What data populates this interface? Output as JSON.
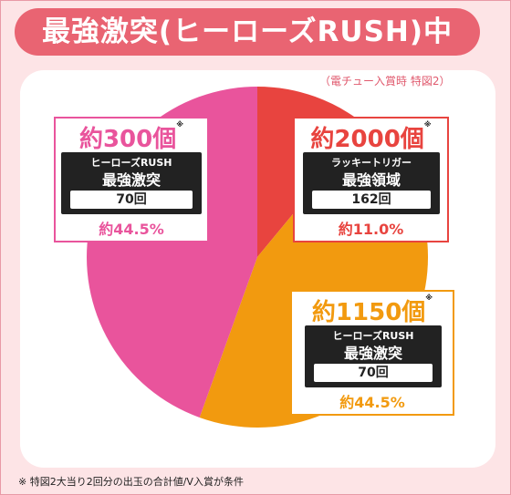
{
  "title": "最強激突(ヒーローズRUSH)中",
  "subnote": "（電チュー入賞時 特図2）",
  "footnote": "※ 特図2大当り2回分の出玉の合計値/V入賞が条件",
  "colors": {
    "pink": "#e9549c",
    "red": "#e8443f",
    "orange": "#f29a0f"
  },
  "chart_data": {
    "type": "pie",
    "title": "最強激突(ヒーローズRUSH)中",
    "slices": [
      {
        "label": "約2000個",
        "value": 11.0,
        "color": "#e8443f",
        "payout": "約2000個",
        "route": "ラッキートリガー",
        "mode": "最強領域",
        "count": "162回",
        "percent": "約11.0%"
      },
      {
        "label": "約1150個",
        "value": 44.5,
        "color": "#f29a0f",
        "payout": "約1150個",
        "route": "ヒーローズRUSH",
        "mode": "最強激突",
        "count": "70回",
        "percent": "約44.5%"
      },
      {
        "label": "約300個",
        "value": 44.5,
        "color": "#e9549c",
        "payout": "約300個",
        "route": "ヒーローズRUSH",
        "mode": "最強激突",
        "count": "70回",
        "percent": "約44.5%"
      }
    ]
  },
  "boxes": {
    "b300": {
      "big": "約300個",
      "mark": "※",
      "line1": "ヒーローズRUSH",
      "line2": "最強激突",
      "count": "70回",
      "pct": "約44.5%"
    },
    "b2000": {
      "big": "約2000個",
      "mark": "※",
      "line1": "ラッキートリガー",
      "line2": "最強領域",
      "count": "162回",
      "pct": "約11.0%"
    },
    "b1150": {
      "big": "約1150個",
      "mark": "※",
      "line1": "ヒーローズRUSH",
      "line2": "最強激突",
      "count": "70回",
      "pct": "約44.5%"
    }
  }
}
